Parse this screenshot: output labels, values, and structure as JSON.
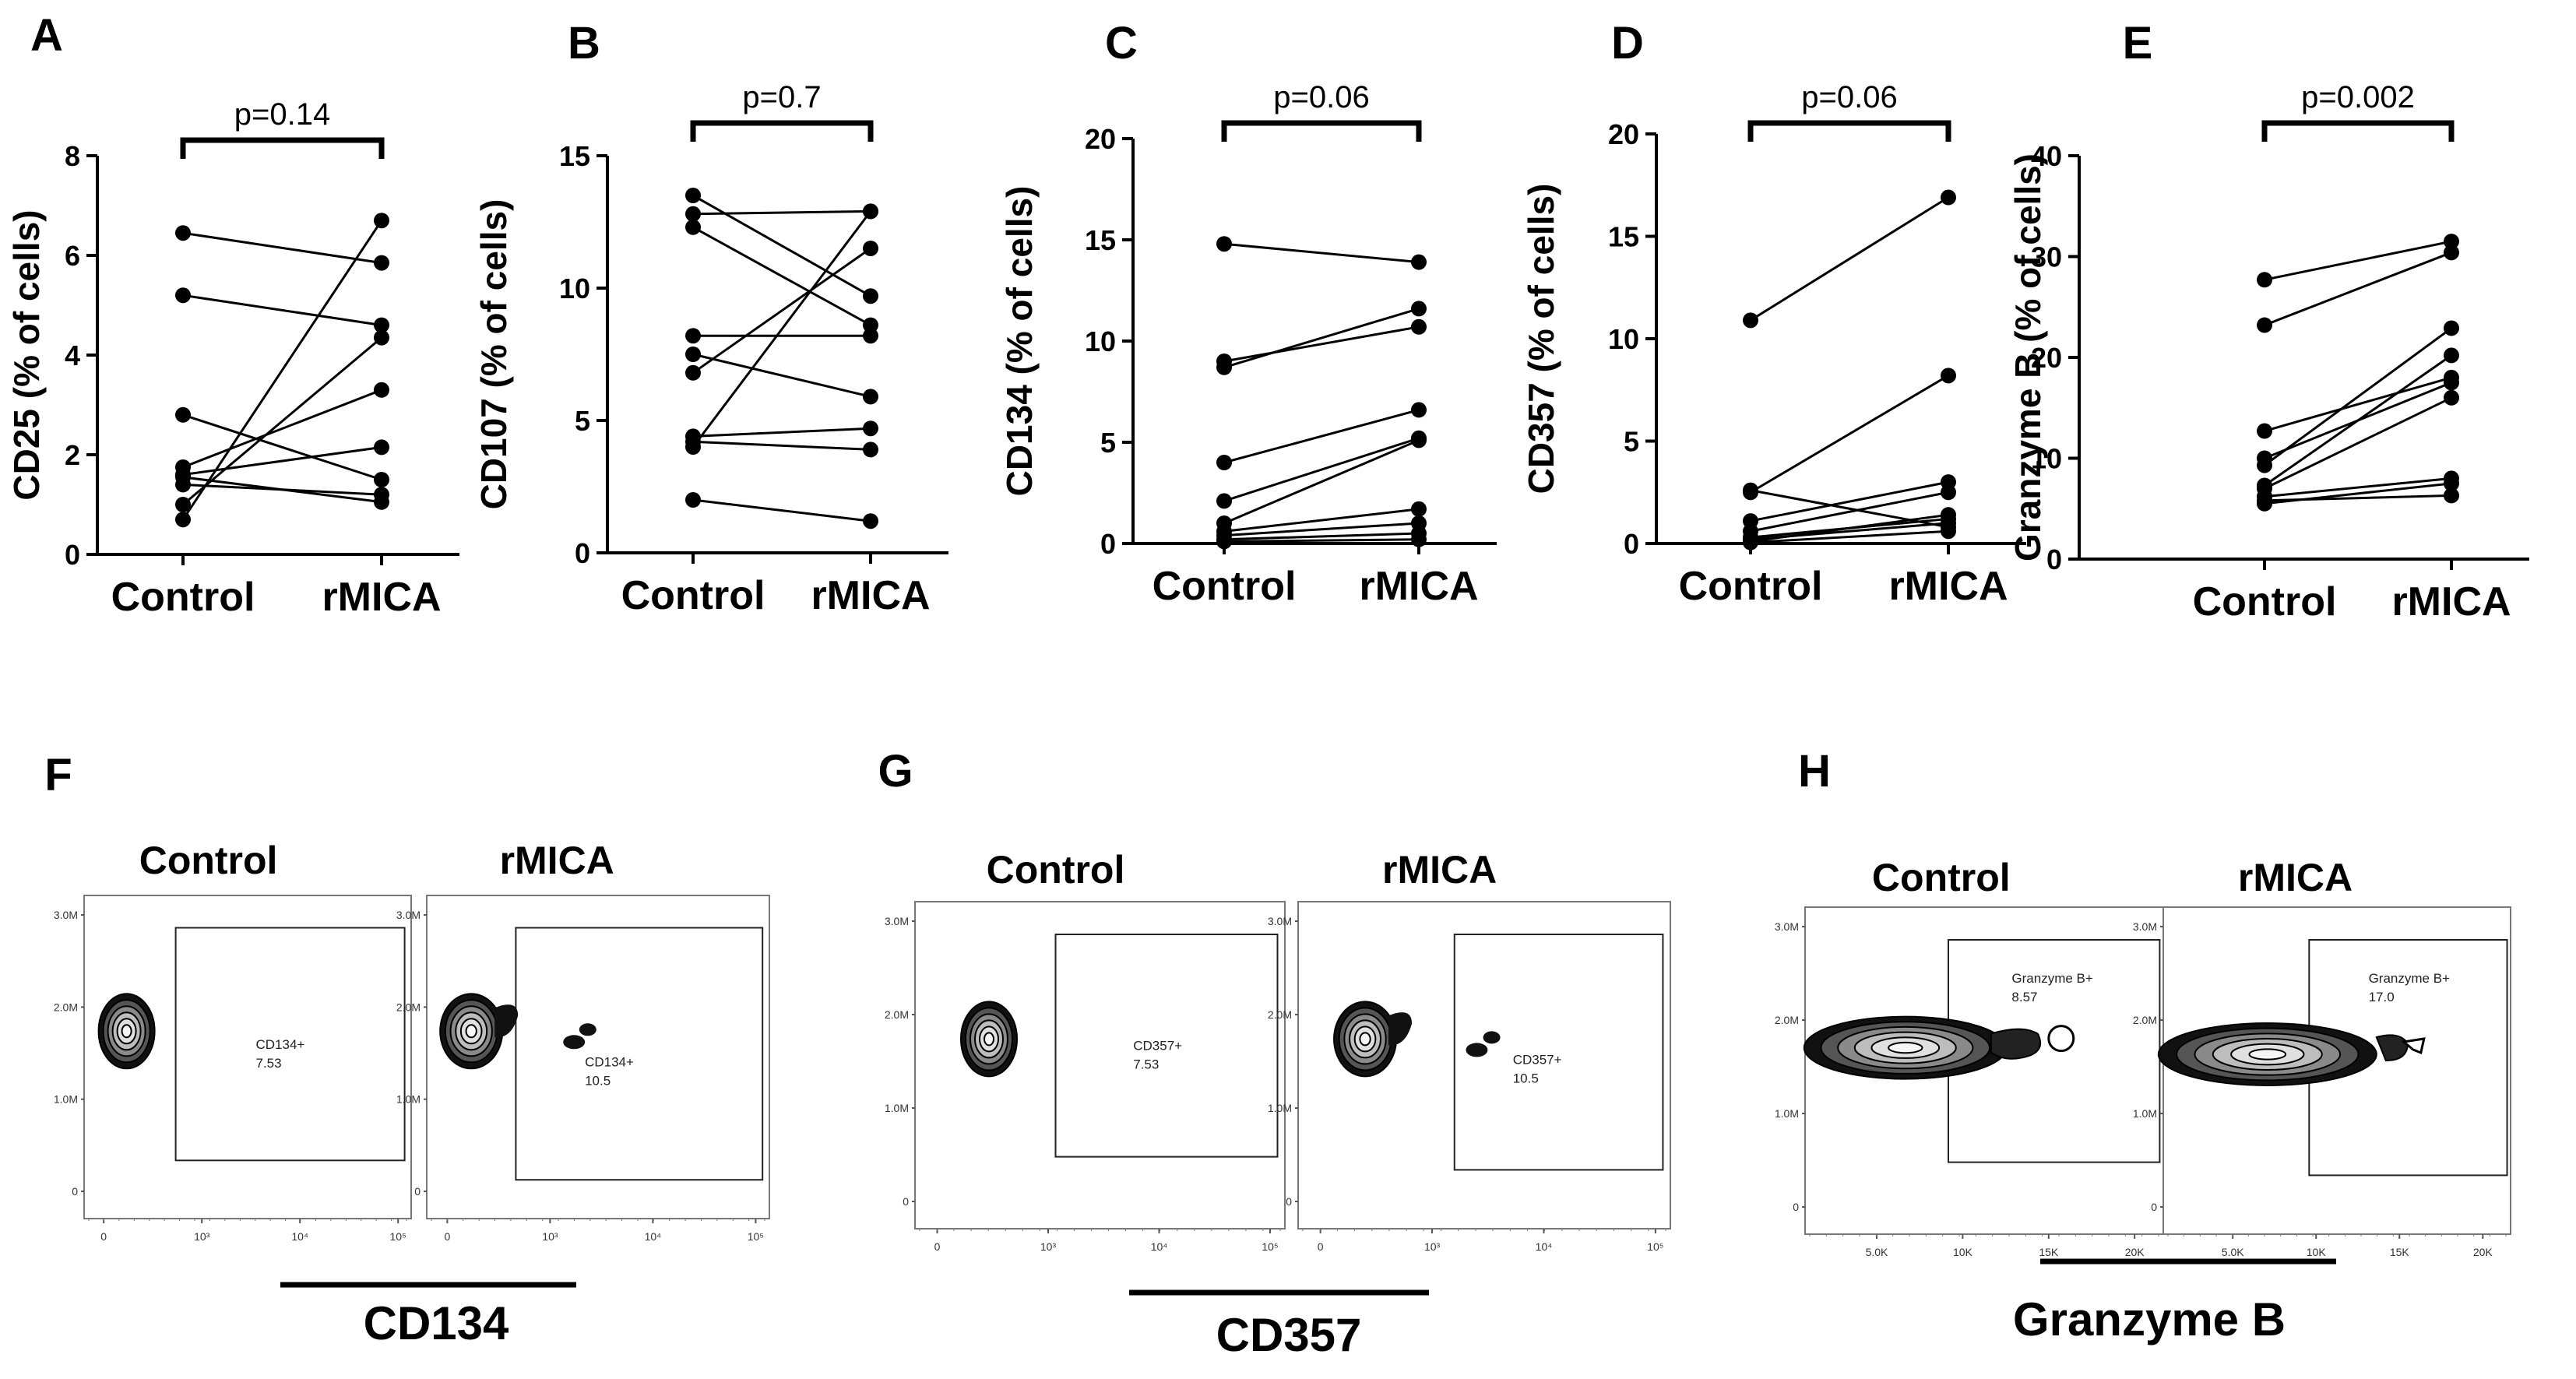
{
  "chart_data": [
    {
      "type": "scatter",
      "style": "paired before-after",
      "panel": "A",
      "ylabel": "CD25 (% of cells)",
      "categories": [
        "Control",
        "rMICA"
      ],
      "ylim": [
        0,
        8
      ],
      "yticks": [
        "0",
        "2",
        "4",
        "6",
        "8"
      ],
      "pvalue": "p=0.14",
      "pairs": [
        [
          6.45,
          5.85
        ],
        [
          5.2,
          4.6
        ],
        [
          2.8,
          1.5
        ],
        [
          1.75,
          3.3
        ],
        [
          1.6,
          2.15
        ],
        [
          1.55,
          1.05
        ],
        [
          1.4,
          1.2
        ],
        [
          1.0,
          4.35
        ],
        [
          0.7,
          6.7
        ]
      ]
    },
    {
      "type": "scatter",
      "style": "paired before-after",
      "panel": "B",
      "ylabel": "CD107 (% of cells)",
      "categories": [
        "Control",
        "rMICA"
      ],
      "ylim": [
        0,
        15
      ],
      "yticks": [
        "0",
        "5",
        "10",
        "15"
      ],
      "pvalue": "p=0.7",
      "pairs": [
        [
          13.5,
          9.7
        ],
        [
          12.8,
          12.9
        ],
        [
          12.3,
          8.6
        ],
        [
          8.2,
          8.2
        ],
        [
          7.5,
          5.9
        ],
        [
          6.8,
          11.5
        ],
        [
          4.4,
          4.7
        ],
        [
          4.2,
          3.9
        ],
        [
          4.0,
          12.9
        ],
        [
          2.0,
          1.2
        ]
      ]
    },
    {
      "type": "scatter",
      "style": "paired before-after",
      "panel": "C",
      "ylabel": "CD134 (% of cells)",
      "categories": [
        "Control",
        "rMICA"
      ],
      "ylim": [
        0,
        20
      ],
      "yticks": [
        "0",
        "5",
        "10",
        "15",
        "20"
      ],
      "pvalue": "p=0.06",
      "pairs": [
        [
          14.8,
          13.9
        ],
        [
          9.0,
          10.7
        ],
        [
          8.7,
          11.6
        ],
        [
          4.0,
          6.6
        ],
        [
          2.1,
          5.2
        ],
        [
          1.0,
          5.1
        ],
        [
          0.6,
          1.7
        ],
        [
          0.4,
          1.0
        ],
        [
          0.2,
          0.5
        ],
        [
          0.1,
          0.2
        ]
      ]
    },
    {
      "type": "scatter",
      "style": "paired before-after",
      "panel": "D",
      "ylabel": "CD357 (% of cells)",
      "categories": [
        "Control",
        "rMICA"
      ],
      "ylim": [
        0,
        20
      ],
      "yticks": [
        "0",
        "5",
        "10",
        "15",
        "20"
      ],
      "pvalue": "p=0.06",
      "pairs": [
        [
          10.9,
          16.9
        ],
        [
          2.6,
          0.8
        ],
        [
          2.5,
          8.2
        ],
        [
          1.1,
          3.0
        ],
        [
          0.6,
          2.5
        ],
        [
          0.3,
          1.2
        ],
        [
          0.2,
          1.0
        ],
        [
          0.1,
          1.4
        ],
        [
          0.05,
          0.6
        ]
      ]
    },
    {
      "type": "scatter",
      "style": "paired before-after",
      "panel": "E",
      "ylabel": "Granzyme B (% of cells)",
      "categories": [
        "Control",
        "rMICA"
      ],
      "ylim": [
        0,
        40
      ],
      "yticks": [
        "0",
        "10",
        "20",
        "30",
        "40"
      ],
      "pvalue": "p=0.002",
      "pairs": [
        [
          27.7,
          31.5
        ],
        [
          23.2,
          30.4
        ],
        [
          12.7,
          18.0
        ],
        [
          10.0,
          17.5
        ],
        [
          9.3,
          22.9
        ],
        [
          7.3,
          20.2
        ],
        [
          7.0,
          16.0
        ],
        [
          6.2,
          8.0
        ],
        [
          5.8,
          6.3
        ],
        [
          5.5,
          7.5
        ]
      ]
    }
  ],
  "flow_panels": [
    {
      "panel": "F",
      "marker": "CD134",
      "conditions": [
        "Control",
        "rMICA"
      ],
      "yticks": [
        "3.0M",
        "2.0M",
        "1.0M",
        "0"
      ],
      "xticks": [
        "0",
        "10³",
        "10⁴",
        "10⁵"
      ],
      "gates": [
        {
          "name": "CD134+",
          "value": "7.53"
        },
        {
          "name": "CD134+",
          "value": "10.5"
        }
      ]
    },
    {
      "panel": "G",
      "marker": "CD357",
      "conditions": [
        "Control",
        "rMICA"
      ],
      "yticks": [
        "3.0M",
        "2.0M",
        "1.0M",
        "0"
      ],
      "xticks": [
        "0",
        "10³",
        "10⁴",
        "10⁵"
      ],
      "gates": [
        {
          "name": "CD357+",
          "value": "7.53"
        },
        {
          "name": "CD357+",
          "value": "10.5"
        }
      ]
    },
    {
      "panel": "H",
      "marker": "Granzyme B",
      "conditions": [
        "Control",
        "rMICA"
      ],
      "yticks": [
        "3.0M",
        "2.0M",
        "1.0M",
        "0"
      ],
      "xticks": [
        "5.0K",
        "10K",
        "15K",
        "20K"
      ],
      "gates": [
        {
          "name": "Granzyme B+",
          "value": "8.57"
        },
        {
          "name": "Granzyme B+",
          "value": "17.0"
        }
      ]
    }
  ]
}
